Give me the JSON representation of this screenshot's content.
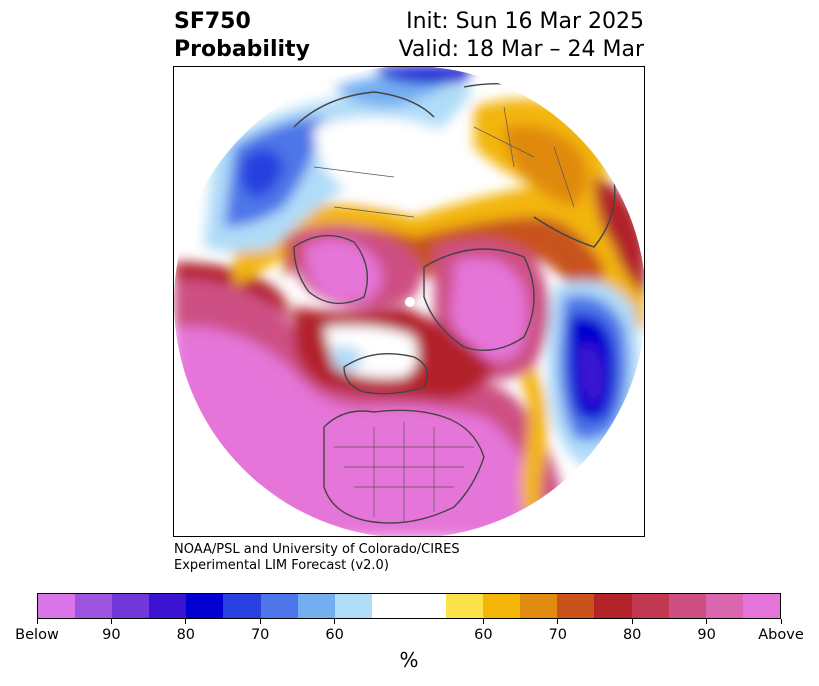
{
  "title": {
    "line1_left": "SF750",
    "line2_left": "Probability",
    "line1_right": "Init: Sun 16 Mar 2025",
    "line2_right": "Valid: 18 Mar – 24 Mar"
  },
  "credit": {
    "line1": "NOAA/PSL and University of Colorado/CIRES",
    "line2": "Experimental LIM Forecast (v2.0)"
  },
  "colorbar": {
    "colors": [
      "#da74e8",
      "#9e54e0",
      "#7038d8",
      "#3a14d0",
      "#0000d0",
      "#2840e0",
      "#4e76e8",
      "#74aef0",
      "#b0dcf8",
      "#ffffff",
      "#ffffff",
      "#fde14a",
      "#f3b507",
      "#e08a10",
      "#c9531a",
      "#b3232a",
      "#c23850",
      "#ce5083",
      "#da66b0",
      "#e574d8"
    ],
    "tick_labels": [
      "Below",
      "90",
      "80",
      "70",
      "60",
      "60",
      "70",
      "80",
      "90",
      "Above"
    ],
    "unit": "%"
  },
  "map": {
    "projection": "north-polar-stereographic",
    "features": [
      "continents",
      "country-borders",
      "us-state-borders",
      "probability-shading"
    ]
  }
}
